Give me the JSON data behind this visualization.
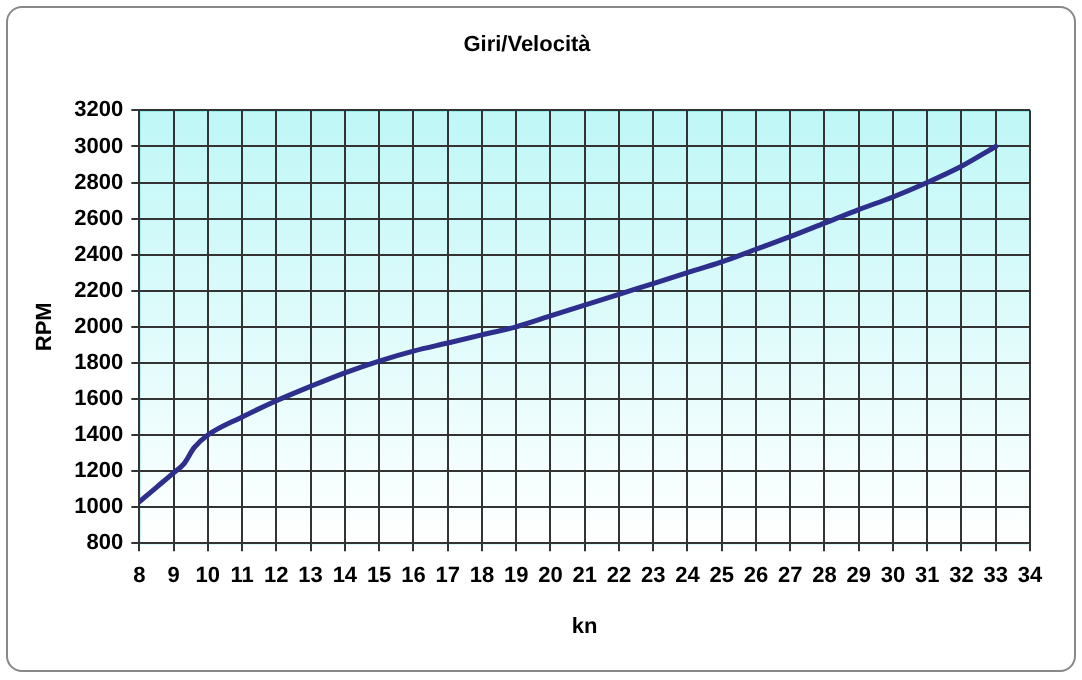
{
  "chart_data": {
    "type": "line",
    "title": "Giri/Velocità",
    "xlabel": "kn",
    "ylabel": "RPM",
    "series": [
      {
        "color": "#2e2e8c",
        "x": [
          8,
          8.5,
          9,
          9.3,
          9.6,
          10,
          11,
          12,
          13,
          14,
          15,
          16,
          17,
          18,
          19,
          20,
          21,
          22,
          23,
          24,
          25,
          26,
          27,
          28,
          29,
          30,
          31,
          32,
          33
        ],
        "values": [
          1030,
          1110,
          1190,
          1240,
          1330,
          1400,
          1500,
          1590,
          1670,
          1745,
          1810,
          1865,
          1910,
          1955,
          2000,
          2060,
          2120,
          2180,
          2240,
          2300,
          2360,
          2430,
          2500,
          2575,
          2650,
          2720,
          2800,
          2890,
          3000
        ]
      }
    ],
    "xlim": [
      8,
      34
    ],
    "xticks": [
      8,
      9,
      10,
      11,
      12,
      13,
      14,
      15,
      16,
      17,
      18,
      19,
      20,
      21,
      22,
      23,
      24,
      25,
      26,
      27,
      28,
      29,
      30,
      31,
      32,
      33,
      34
    ],
    "ylim": [
      800,
      3200
    ],
    "yticks": [
      800,
      1000,
      1200,
      1400,
      1600,
      1800,
      2000,
      2200,
      2400,
      2600,
      2800,
      3000,
      3200
    ],
    "grid": true,
    "legend": false,
    "marker": "none",
    "line_style": "solid"
  }
}
